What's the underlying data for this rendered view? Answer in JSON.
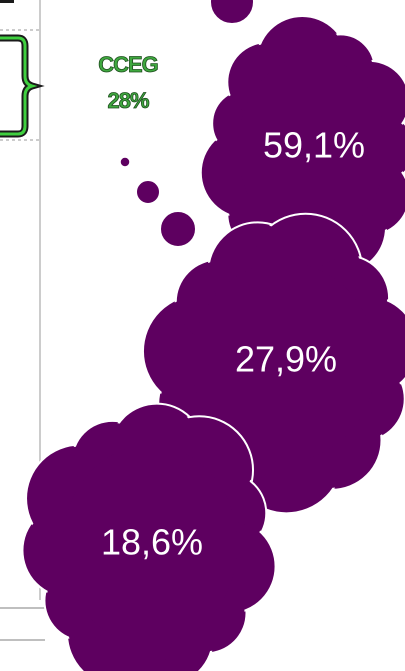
{
  "label": {
    "name": "CCEG",
    "value": "28%"
  },
  "clouds": [
    {
      "text": "59,1%"
    },
    {
      "text": "27,9%"
    },
    {
      "text": "18,6%"
    }
  ]
}
